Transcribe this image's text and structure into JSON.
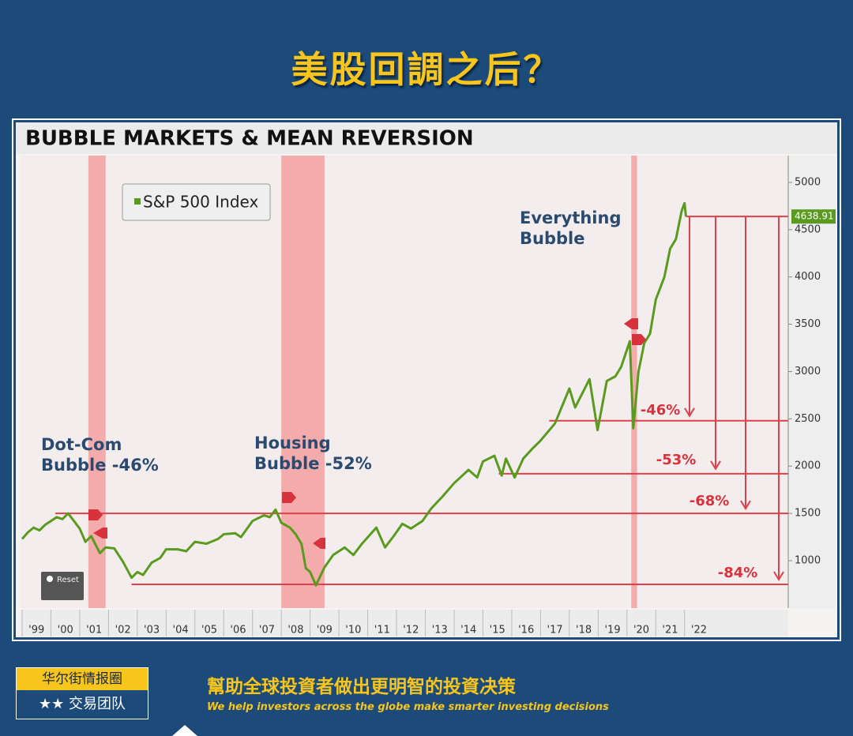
{
  "header": {
    "title": "美股回調之后？"
  },
  "chart_data": {
    "type": "line",
    "title": "BUBBLE MARKETS & MEAN REVERSION",
    "series": [
      {
        "name": "S&P 500 Index",
        "color": "#5a9a1e",
        "x": [
          1999.0,
          1999.2,
          1999.4,
          1999.6,
          1999.8,
          2000.0,
          2000.2,
          2000.4,
          2000.6,
          2000.8,
          2001.0,
          2001.2,
          2001.4,
          2001.7,
          2001.9,
          2002.2,
          2002.5,
          2002.8,
          2003.0,
          2003.2,
          2003.5,
          2003.8,
          2004.0,
          2004.4,
          2004.7,
          2005.0,
          2005.4,
          2005.8,
          2006.0,
          2006.4,
          2006.6,
          2007.0,
          2007.4,
          2007.6,
          2007.8,
          2008.0,
          2008.3,
          2008.5,
          2008.7,
          2008.85,
          2009.0,
          2009.2,
          2009.5,
          2009.8,
          2010.2,
          2010.5,
          2010.8,
          2011.3,
          2011.6,
          2011.9,
          2012.2,
          2012.5,
          2012.9,
          2013.2,
          2013.6,
          2014.0,
          2014.5,
          2014.8,
          2015.0,
          2015.4,
          2015.65,
          2015.8,
          2016.1,
          2016.4,
          2016.7,
          2017.0,
          2017.5,
          2018.0,
          2018.2,
          2018.7,
          2018.98,
          2019.3,
          2019.6,
          2019.8,
          2020.1,
          2020.22,
          2020.4,
          2020.6,
          2020.8,
          2021.0,
          2021.3,
          2021.5,
          2021.7,
          2021.9,
          2022.0,
          2022.05
        ],
        "values": [
          1230,
          1300,
          1350,
          1320,
          1380,
          1420,
          1460,
          1440,
          1500,
          1420,
          1340,
          1200,
          1260,
          1080,
          1140,
          1130,
          990,
          820,
          880,
          850,
          980,
          1030,
          1120,
          1120,
          1100,
          1200,
          1180,
          1230,
          1280,
          1290,
          1250,
          1420,
          1480,
          1460,
          1540,
          1400,
          1350,
          1280,
          1180,
          920,
          880,
          740,
          930,
          1060,
          1140,
          1060,
          1180,
          1350,
          1140,
          1260,
          1390,
          1340,
          1420,
          1550,
          1680,
          1820,
          1960,
          1880,
          2050,
          2110,
          1900,
          2080,
          1880,
          2080,
          2180,
          2270,
          2450,
          2820,
          2620,
          2920,
          2380,
          2900,
          2950,
          3050,
          3320,
          2400,
          3000,
          3300,
          3400,
          3760,
          4000,
          4300,
          4400,
          4700,
          4780,
          4638.91
        ]
      }
    ],
    "xlim": [
      1999,
      2025.6
    ],
    "xticks": [
      {
        "value": 1999.5,
        "label": "'99"
      },
      {
        "value": 2000.5,
        "label": "'00"
      },
      {
        "value": 2001.5,
        "label": "'01"
      },
      {
        "value": 2002.5,
        "label": "'02"
      },
      {
        "value": 2003.5,
        "label": "'03"
      },
      {
        "value": 2004.5,
        "label": "'04"
      },
      {
        "value": 2005.5,
        "label": "'05"
      },
      {
        "value": 2006.5,
        "label": "'06"
      },
      {
        "value": 2007.5,
        "label": "'07"
      },
      {
        "value": 2008.5,
        "label": "'08"
      },
      {
        "value": 2009.5,
        "label": "'09"
      },
      {
        "value": 2010.5,
        "label": "'10"
      },
      {
        "value": 2011.5,
        "label": "'11"
      },
      {
        "value": 2012.5,
        "label": "'12"
      },
      {
        "value": 2013.5,
        "label": "'13"
      },
      {
        "value": 2014.5,
        "label": "'14"
      },
      {
        "value": 2015.5,
        "label": "'15"
      },
      {
        "value": 2016.5,
        "label": "'16"
      },
      {
        "value": 2017.5,
        "label": "'17"
      },
      {
        "value": 2018.5,
        "label": "'18"
      },
      {
        "value": 2019.5,
        "label": "'19"
      },
      {
        "value": 2020.5,
        "label": "'20"
      },
      {
        "value": 2021.5,
        "label": "'21"
      },
      {
        "value": 2022.5,
        "label": "'22"
      }
    ],
    "ylim": [
      500,
      5300
    ],
    "yticks": [
      1000,
      1500,
      2000,
      2500,
      3000,
      3500,
      4000,
      4500,
      5000
    ],
    "recessions": [
      [
        2001.3,
        2001.9
      ],
      [
        2008.0,
        2009.5
      ],
      [
        2020.15,
        2020.35
      ]
    ],
    "recession_color": "#f29a9a",
    "levels": [
      {
        "value": 1500,
        "from": 2000.15
      },
      {
        "value": 750,
        "from": 2002.8
      },
      {
        "value": 2480,
        "from": 2017.3
      },
      {
        "value": 1920,
        "from": 2015.55
      },
      {
        "value": 4638.91,
        "from": 2022.05
      }
    ],
    "level_color": "#e0404a",
    "drawdowns": [
      {
        "label": "-46%",
        "level": 2480
      },
      {
        "label": "-53%",
        "level": 1920
      },
      {
        "label": "-68%",
        "level": 1500
      },
      {
        "label": "-84%",
        "level": 750
      }
    ],
    "annotations": [
      {
        "lines": [
          "Dot-Com",
          "Bubble -46%"
        ]
      },
      {
        "lines": [
          "Housing",
          "Bubble -52%"
        ]
      },
      {
        "lines": [
          "Everything",
          "Bubble"
        ]
      }
    ],
    "reset_button": "Reset"
  },
  "footer": {
    "brand": "华尔街情报圈",
    "team": "★★ 交易团队",
    "slogan": "幫助全球投資者做出更明智的投資决策",
    "slogan_en": "We help investors across the globe make smarter investing decisions"
  }
}
